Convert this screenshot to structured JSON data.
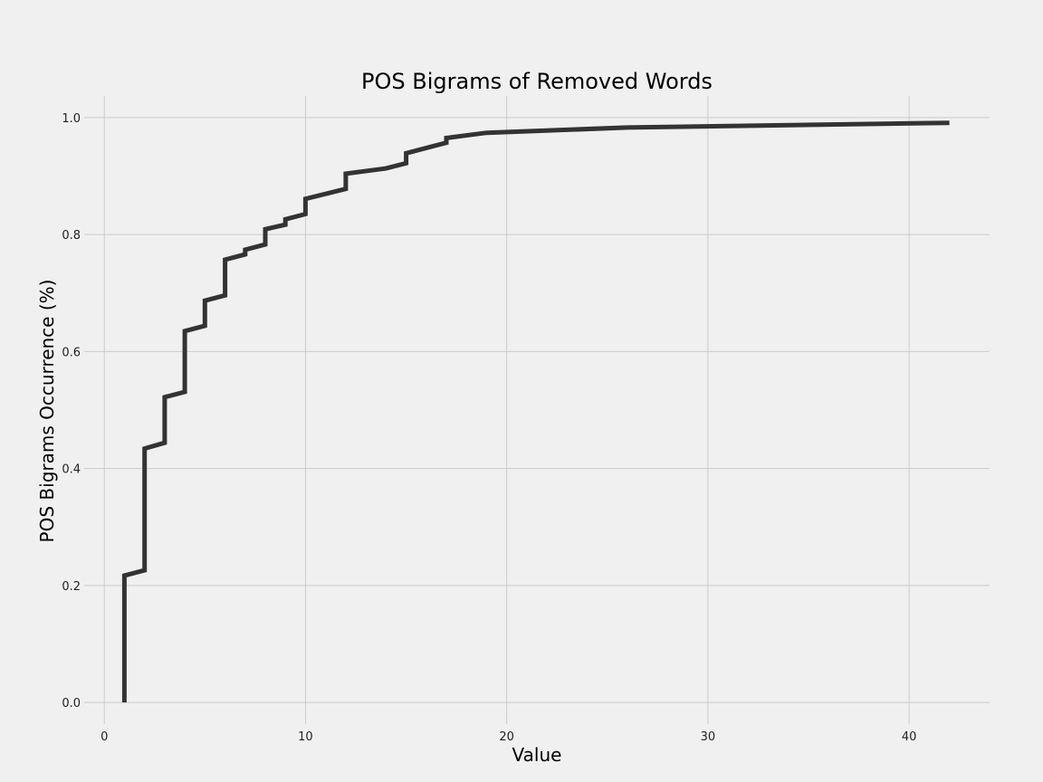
{
  "chart_data": {
    "type": "line",
    "step": true,
    "title": "POS Bigrams of Removed Words",
    "xlabel": "Value",
    "ylabel": "POS Bigrams Occurrence (%)",
    "xlim": [
      -1,
      44
    ],
    "ylim": [
      -0.037,
      1.037
    ],
    "x_ticks": [
      0,
      10,
      20,
      30,
      40
    ],
    "x_tick_labels": [
      "0",
      "10",
      "20",
      "30",
      "40"
    ],
    "y_ticks": [
      0.0,
      0.2,
      0.4,
      0.6,
      0.8,
      1.0
    ],
    "y_tick_labels": [
      "0.0",
      "0.2",
      "0.4",
      "0.6",
      "0.8",
      "1.0"
    ],
    "grid": true,
    "series": [
      {
        "color": "#333333",
        "points": [
          [
            1,
            0.0
          ],
          [
            1,
            0.217
          ],
          [
            2,
            0.226
          ],
          [
            2,
            0.434
          ],
          [
            3,
            0.444
          ],
          [
            3,
            0.522
          ],
          [
            4,
            0.531
          ],
          [
            4,
            0.635
          ],
          [
            5,
            0.644
          ],
          [
            5,
            0.687
          ],
          [
            6,
            0.696
          ],
          [
            6,
            0.757
          ],
          [
            7,
            0.766
          ],
          [
            7,
            0.774
          ],
          [
            8,
            0.783
          ],
          [
            8,
            0.809
          ],
          [
            9,
            0.817
          ],
          [
            9,
            0.826
          ],
          [
            10,
            0.835
          ],
          [
            10,
            0.861
          ],
          [
            12,
            0.878
          ],
          [
            12,
            0.904
          ],
          [
            14,
            0.913
          ],
          [
            15,
            0.922
          ],
          [
            15,
            0.939
          ],
          [
            17,
            0.957
          ],
          [
            17,
            0.965
          ],
          [
            19,
            0.974
          ],
          [
            26,
            0.983
          ],
          [
            42,
            0.991
          ]
        ]
      }
    ]
  },
  "colors": {
    "background": "#f0f0f0",
    "grid": "#cbcbcb",
    "line": "#333333"
  }
}
